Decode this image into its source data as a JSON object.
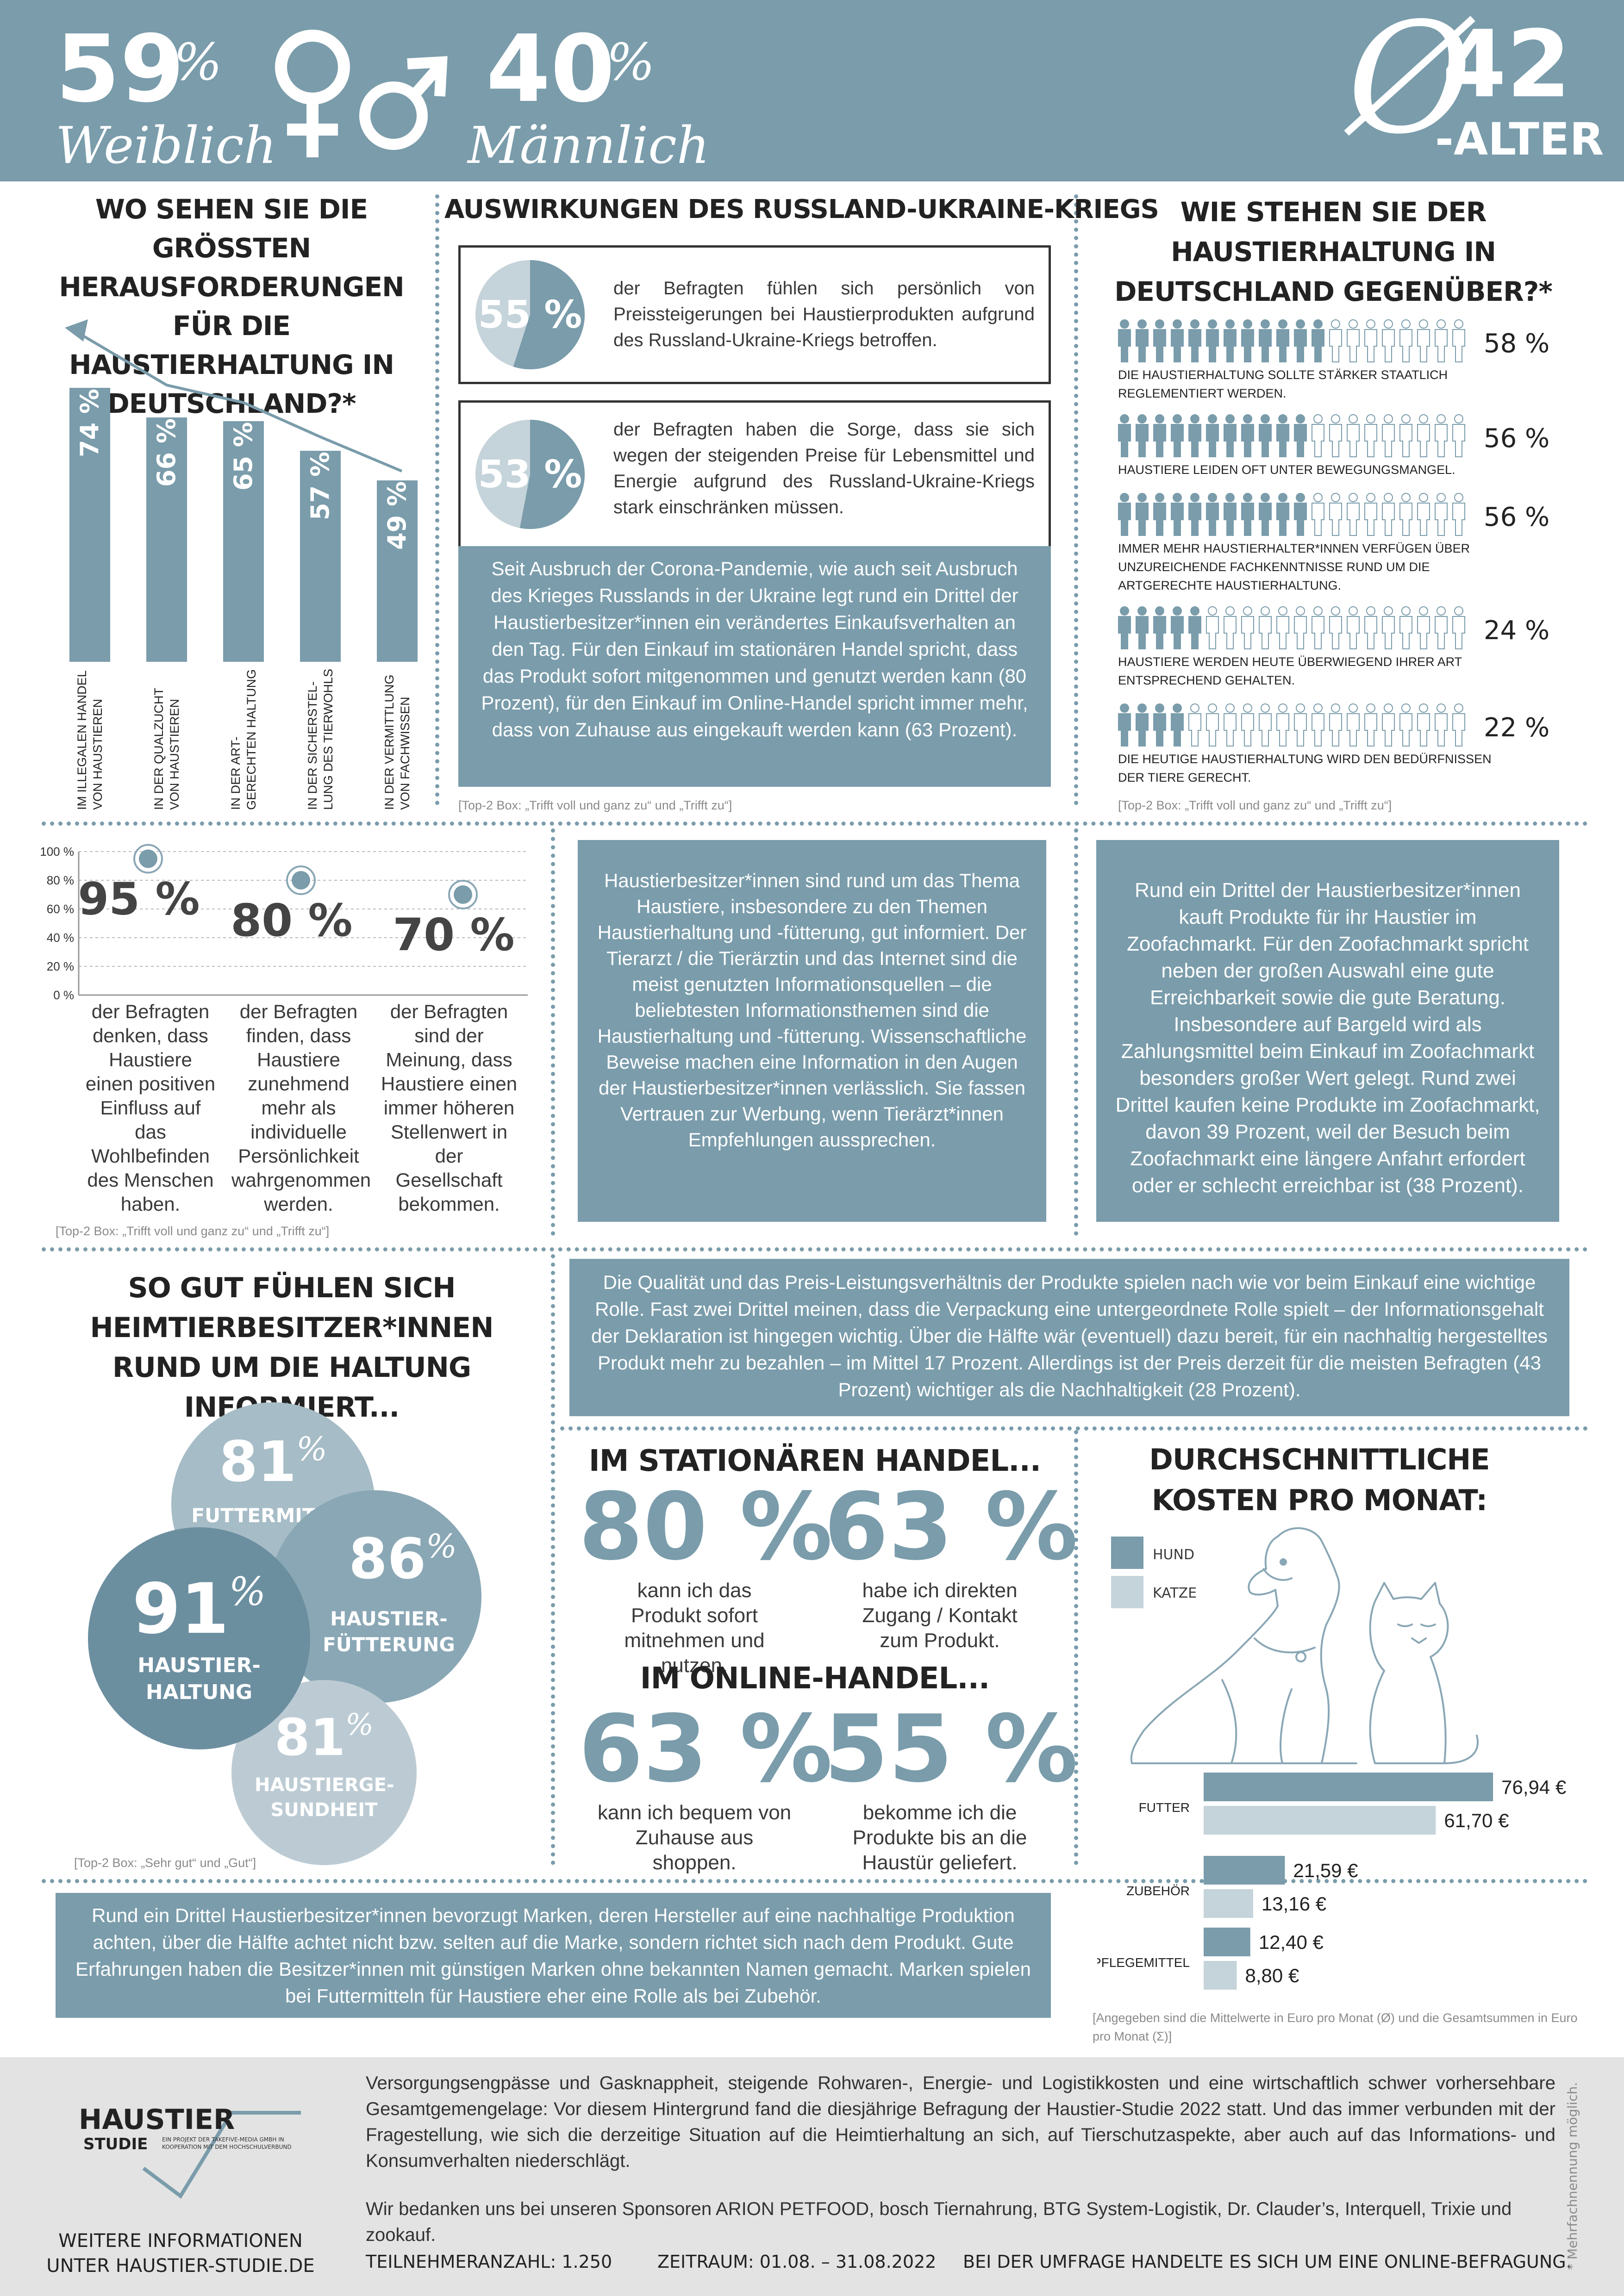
{
  "header": {
    "female_pct": "59",
    "female_label": "Weiblich",
    "male_pct": "40",
    "male_label": "Männlich",
    "pct_sign": "%",
    "age_symbol": "Ø",
    "age_value": "42",
    "age_label": "-ALTER",
    "bg_color": "#7a9cab"
  },
  "challenges": {
    "title": "WO SEHEN SIE DIE GRÖSSTEN HERAUSFORDERUNGEN FÜR DIE HAUSTIERHALTUNG IN DEUTSCHLAND?*",
    "chart_data": {
      "type": "bar",
      "categories": [
        "IM ILLEGALEN HANDEL VON HAUSTIEREN",
        "IN DER QUALZUCHT VON HAUSTIEREN",
        "IN DER ART-GERECHTEN HALTUNG",
        "IN DER SICHERSTEL-LUNG DES TIERWOHLS",
        "IN DER VERMITTLUNG VON FACHWISSEN"
      ],
      "values": [
        74,
        66,
        65,
        57,
        49
      ],
      "labels": [
        "74 %",
        "66 %",
        "65 %",
        "57 %",
        "49 %"
      ],
      "bar_color": "#7a9cab"
    }
  },
  "ukraine": {
    "title": "AUSWIRKUNGEN DES RUSSLAND-UKRAINE-KRIEGS",
    "stat1": {
      "value": 55,
      "label": "55 %",
      "text": "der Befragten fühlen sich persönlich von Preissteigerungen bei Haustierprodukten aufgrund des Russland-Ukraine-Kriegs betroffen."
    },
    "stat2": {
      "value": 53,
      "label": "53 %",
      "text": "der Befragten haben die Sorge, dass sie sich wegen der steigenden Preise für Lebensmittel und Energie aufgrund des Russland-Ukraine-Kriegs stark einschränken müssen."
    },
    "box_text": "Seit Ausbruch der Corona-Pandemie, wie auch seit Ausbruch des Krieges Russlands in der Ukraine legt rund ein Drittel der Haustierbesitzer*innen ein verändertes Einkaufsverhalten an den Tag. Für den Einkauf im stationären Handel spricht, dass das Produkt sofort mitgenommen und genutzt werden kann (80 Prozent), für den Einkauf im Online-Handel spricht immer mehr, dass von Zuhause aus eingekauft werden kann (63 Prozent).",
    "footnote": "[Top-2 Box: „Trifft voll und ganz zu“ und „Trifft zu“]"
  },
  "attitude": {
    "title": "WIE STEHEN SIE DER HAUSTIERHALTUNG IN DEUTSCHLAND GEGENÜBER?*",
    "items": [
      {
        "value": 58,
        "label": "58 %",
        "text": "DIE HAUSTIERHALTUNG SOLLTE STÄRKER STAATLICH REGLEMENTIERT WERDEN."
      },
      {
        "value": 56,
        "label": "56 %",
        "text": "HAUSTIERE LEIDEN OFT UNTER BEWEGUNGSMANGEL."
      },
      {
        "value": 56,
        "label": "56 %",
        "text": "IMMER MEHR HAUSTIERHALTER*INNEN VERFÜGEN ÜBER UNZUREICHENDE FACHKENNTNISSE RUND UM DIE ARTGERECHTE HAUSTIERHALTUNG."
      },
      {
        "value": 24,
        "label": "24 %",
        "text": "HAUSTIERE WERDEN HEUTE ÜBERWIEGEND IHRER ART ENTSPRECHEND GEHALTEN."
      },
      {
        "value": 22,
        "label": "22 %",
        "text": "DIE HEUTIGE HAUSTIERHALTUNG WIRD DEN BEDÜRFNISSEN DER TIERE GERECHT."
      }
    ],
    "footnote": "[Top-2 Box: „Trifft voll und ganz zu“ und „Trifft zu“]"
  },
  "wellbeing": {
    "chart_data": {
      "type": "scatter",
      "values": [
        95,
        80,
        70
      ],
      "labels": [
        "95 %",
        "80 %",
        "70 %"
      ],
      "yticks": [
        "100 %",
        "80 %",
        "60 %",
        "40 %",
        "20 %",
        "0 %"
      ],
      "ylim": [
        0,
        100
      ]
    },
    "texts": [
      "der Befragten denken, dass Haustiere einen positiven Einfluss auf das Wohlbefinden des Menschen haben.",
      "der Befragten finden, dass Haustiere zunehmend mehr als individuelle Persönlichkeit wahrgenommen werden.",
      "der Befragten sind der Meinung, dass Haustiere einen immer höheren Stellenwert in der Gesellschaft bekommen."
    ],
    "footnote": "[Top-2 Box: „Trifft voll und ganz zu“ und „Trifft zu“]"
  },
  "info_box": "Haustierbesitzer*innen sind rund um das Thema Haustiere, insbesondere zu den Themen Haustierhaltung und -fütterung, gut informiert. Der Tierarzt / die Tierärztin und das Internet sind die meist genutzten Informationsquellen – die beliebtesten Informationsthemen sind die Haustierhaltung und -fütterung. Wissenschaftliche Beweise machen eine Information in den Augen der Haustierbesitzer*innen verlässlich. Sie fassen Vertrauen zur Werbung, wenn Tierärzt*innen Empfehlungen aussprechen.",
  "zoo_box": "Rund ein Drittel der Haustierbesitzer*innen kauft Produkte für ihr Haustier im Zoofachmarkt. Für den Zoofachmarkt spricht neben der großen Auswahl eine gute Erreichbarkeit sowie die gute Beratung. Insbesondere auf Bargeld wird als Zahlungsmittel beim Einkauf im Zoofachmarkt besonders großer Wert gelegt. Rund zwei Drittel kaufen keine Produkte im Zoofachmarkt, davon 39 Prozent, weil der Besuch beim Zoofachmarkt eine längere Anfahrt erfordert oder er schlecht erreichbar ist (38 Prozent).",
  "quality_box": "Die Qualität und das Preis-Leistungsverhältnis der Produkte spielen nach wie vor beim Einkauf eine wichtige Rolle. Fast zwei Drittel meinen, dass die Verpackung eine untergeordnete Rolle spielt – der Informationsgehalt der Deklaration ist hingegen wichtig. Über die Hälfte wär (eventuell) dazu bereit, für ein nachhaltig hergestelltes Produkt mehr zu bezahlen – im Mittel 17 Prozent. Allerdings ist der Preis derzeit für die meisten Befragten (43 Prozent) wichtiger als die Nachhaltigkeit (28 Prozent).",
  "informed": {
    "title": "SO GUT FÜHLEN SICH HEIMTIERBESITZER*INNEN RUND UM DIE HALTUNG INFORMIERT...",
    "circles": [
      {
        "value": "81",
        "label": "FUTTERMITTEL"
      },
      {
        "value": "91",
        "label": "HAUSTIER-HALTUNG"
      },
      {
        "value": "86",
        "label": "HAUSTIER-FÜTTERUNG"
      },
      {
        "value": "81",
        "label": "HAUSTIERGE-SUNDHEIT"
      }
    ],
    "pct_sign": "%",
    "footnote": "[Top-2 Box: „Sehr gut“ und „Gut“]"
  },
  "shopping": {
    "title1": "IM STATIONÄREN HANDEL...",
    "s1": {
      "label": "80 %",
      "text": "kann ich das Produkt sofort mitnehmen und nutzen."
    },
    "s2": {
      "label": "63 %",
      "text": "habe ich direkten Zugang / Kontakt zum Produkt."
    },
    "title2": "IM ONLINE-HANDEL...",
    "o1": {
      "label": "63 %",
      "text": "kann ich bequem von Zuhause aus shoppen."
    },
    "o2": {
      "label": "55 %",
      "text": "bekomme ich die Produkte bis an die Haustür geliefert."
    }
  },
  "costs": {
    "title": "DURCHSCHNITTLICHE KOSTEN PRO MONAT:",
    "legend": [
      {
        "name": "HUND",
        "color": "#7a9cab"
      },
      {
        "name": "KATZE",
        "color": "#c5d3da"
      }
    ],
    "chart_data": {
      "type": "bar",
      "categories": [
        "FUTTER",
        "ZUBEHÖR",
        "PFLEGEMITTEL"
      ],
      "series": [
        {
          "name": "HUND",
          "values": [
            76.94,
            21.59,
            12.4
          ],
          "labels": [
            "76,94 €",
            "21,59 €",
            "12,40 €"
          ]
        },
        {
          "name": "KATZE",
          "values": [
            61.7,
            13.16,
            8.8
          ],
          "labels": [
            "61,70 €",
            "13,16 €",
            "8,80 €"
          ]
        }
      ],
      "xlim": [
        0,
        80
      ]
    },
    "footnote": "[Angegeben sind die Mittelwerte in Euro pro Monat (Ø) und die Gesamtsummen in Euro pro Monat (Σ)]"
  },
  "brands_box": "Rund ein Drittel Haustierbesitzer*innen bevorzugt Marken, deren Hersteller auf eine nachhaltige Produktion achten, über die Hälfte achtet nicht bzw. selten auf die Marke, sondern richtet sich nach dem Produkt. Gute Erfahrungen haben die Besitzer*innen mit günstigen Marken ohne bekannten Namen gemacht. Marken spielen bei Futtermitteln für Haustiere eher eine Rolle als bei Zubehör.",
  "footer": {
    "logo_line1": "HAUSTIER",
    "logo_line2": "STUDIE",
    "logo_small": "EIN PROJEKT DER TAKEFIVE-MEDIA GMBH IN KOOPERATION MIT DEM HOCHSCHULVERBUND",
    "more_info": "WEITERE INFORMATIONEN UNTER HAUSTIER-STUDIE.DE",
    "paragraph1": "Versorgungsengpässe und Gasknappheit, steigende Rohwaren-, Energie- und Logistikkosten und eine wirtschaftlich schwer vorhersehbare Gesamtgemengelage: Vor diesem Hintergrund fand die diesjährige Befragung der Haustier-Studie 2022 statt. Und das immer verbunden mit der Fragestellung, wie sich die derzeitige Situation auf die Heimtierhaltung an sich, auf Tierschutzaspekte, aber auch auf das Informations- und Konsumverhalten niederschlägt.",
    "paragraph2": "Wir bedanken uns bei unseren Sponsoren ARION PETFOOD, bosch Tiernahrung, BTG System-Logistik, Dr. Clauder’s, Interquell, Trixie und zookauf.",
    "participants": "TEILNEHMERANZAHL: 1.250",
    "period": "ZEITRAUM: 01.08. – 31.08.2022",
    "survey": "BEI DER UMFRAGE HANDELTE ES SICH UM EINE ONLINE-BEFRAGUNG.",
    "side_note": "* Mehrfachnennung möglich."
  }
}
